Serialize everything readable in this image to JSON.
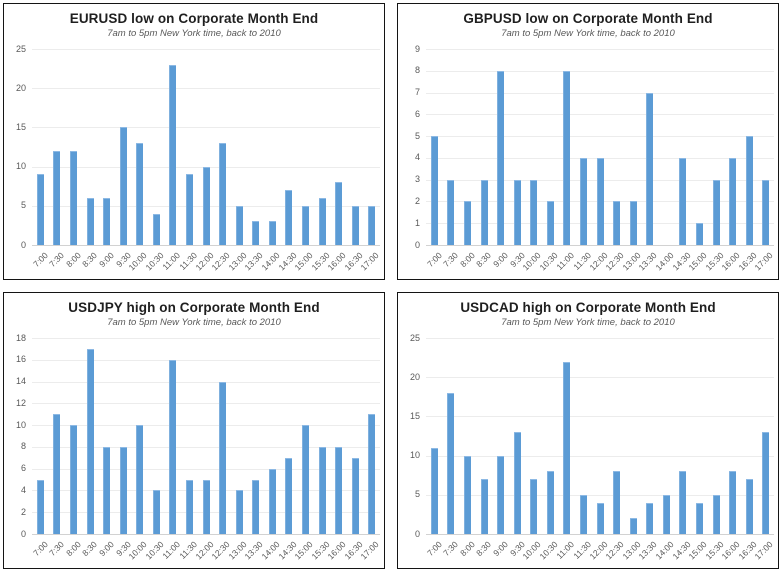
{
  "colors": {
    "bar_fill": "#5b9bd5",
    "bar_highlight": "#8db9e4",
    "gridline": "#ececec",
    "axis_baseline": "#d2d2d2",
    "title_text": "#1f1f1f",
    "subtitle_text": "#595959",
    "tick_text": "#595959",
    "panel_border": "#141414",
    "background": "#ffffff"
  },
  "chart_data": [
    {
      "type": "bar",
      "title": "EURUSD low on Corporate Month End",
      "subtitle": "7am to 5pm New York time, back to 2010",
      "categories": [
        "7:00",
        "7:30",
        "8:00",
        "8:30",
        "9:00",
        "9:30",
        "10:00",
        "10:30",
        "11:00",
        "11:30",
        "12:00",
        "12:30",
        "13:00",
        "13:30",
        "14:00",
        "14:30",
        "15:00",
        "15:30",
        "16:00",
        "16:30",
        "17:00"
      ],
      "values": [
        9,
        12,
        12,
        6,
        6,
        15,
        13,
        4,
        23,
        9,
        10,
        13,
        5,
        3,
        3,
        7,
        5,
        6,
        8,
        5,
        5
      ],
      "xlabel": "",
      "ylabel": "",
      "ylim": [
        0,
        25
      ],
      "y_step": 5,
      "grid": "horizontal",
      "legend": "none"
    },
    {
      "type": "bar",
      "title": "GBPUSD low on Corporate Month End",
      "subtitle": "7am to 5pm New York time, back to 2010",
      "categories": [
        "7:00",
        "7:30",
        "8:00",
        "8:30",
        "9:00",
        "9:30",
        "10:00",
        "10:30",
        "11:00",
        "11:30",
        "12:00",
        "12:30",
        "13:00",
        "13:30",
        "14:00",
        "14:30",
        "15:00",
        "15:30",
        "16:00",
        "16:30",
        "17:00"
      ],
      "values": [
        5,
        3,
        2,
        3,
        8,
        3,
        3,
        2,
        8,
        4,
        4,
        2,
        2,
        7,
        0,
        4,
        1,
        3,
        4,
        5,
        3
      ],
      "xlabel": "",
      "ylabel": "",
      "ylim": [
        0,
        9
      ],
      "y_step": 1,
      "grid": "horizontal",
      "legend": "none"
    },
    {
      "type": "bar",
      "title": "USDJPY high on Corporate Month End",
      "subtitle": "7am to 5pm New York time, back to 2010",
      "categories": [
        "7:00",
        "7:30",
        "8:00",
        "8:30",
        "9:00",
        "9:30",
        "10:00",
        "10:30",
        "11:00",
        "11:30",
        "12:00",
        "12:30",
        "13:00",
        "13:30",
        "14:00",
        "14:30",
        "15:00",
        "15:30",
        "16:00",
        "16:30",
        "17:00"
      ],
      "values": [
        5,
        11,
        10,
        17,
        8,
        8,
        10,
        4,
        16,
        5,
        5,
        14,
        4,
        5,
        6,
        7,
        10,
        8,
        8,
        7,
        11
      ],
      "xlabel": "",
      "ylabel": "",
      "ylim": [
        0,
        18
      ],
      "y_step": 2,
      "grid": "horizontal",
      "legend": "none"
    },
    {
      "type": "bar",
      "title": "USDCAD high on Corporate Month End",
      "subtitle": "7am to 5pm New York time, back to 2010",
      "categories": [
        "7:00",
        "7:30",
        "8:00",
        "8:30",
        "9:00",
        "9:30",
        "10:00",
        "10:30",
        "11:00",
        "11:30",
        "12:00",
        "12:30",
        "13:00",
        "13:30",
        "14:00",
        "14:30",
        "15:00",
        "15:30",
        "16:00",
        "16:30",
        "17:00"
      ],
      "values": [
        11,
        18,
        10,
        7,
        10,
        13,
        7,
        8,
        22,
        5,
        4,
        8,
        2,
        4,
        5,
        8,
        4,
        5,
        8,
        7,
        13
      ],
      "xlabel": "",
      "ylabel": "",
      "ylim": [
        0,
        25
      ],
      "y_step": 5,
      "grid": "horizontal",
      "legend": "none"
    }
  ]
}
